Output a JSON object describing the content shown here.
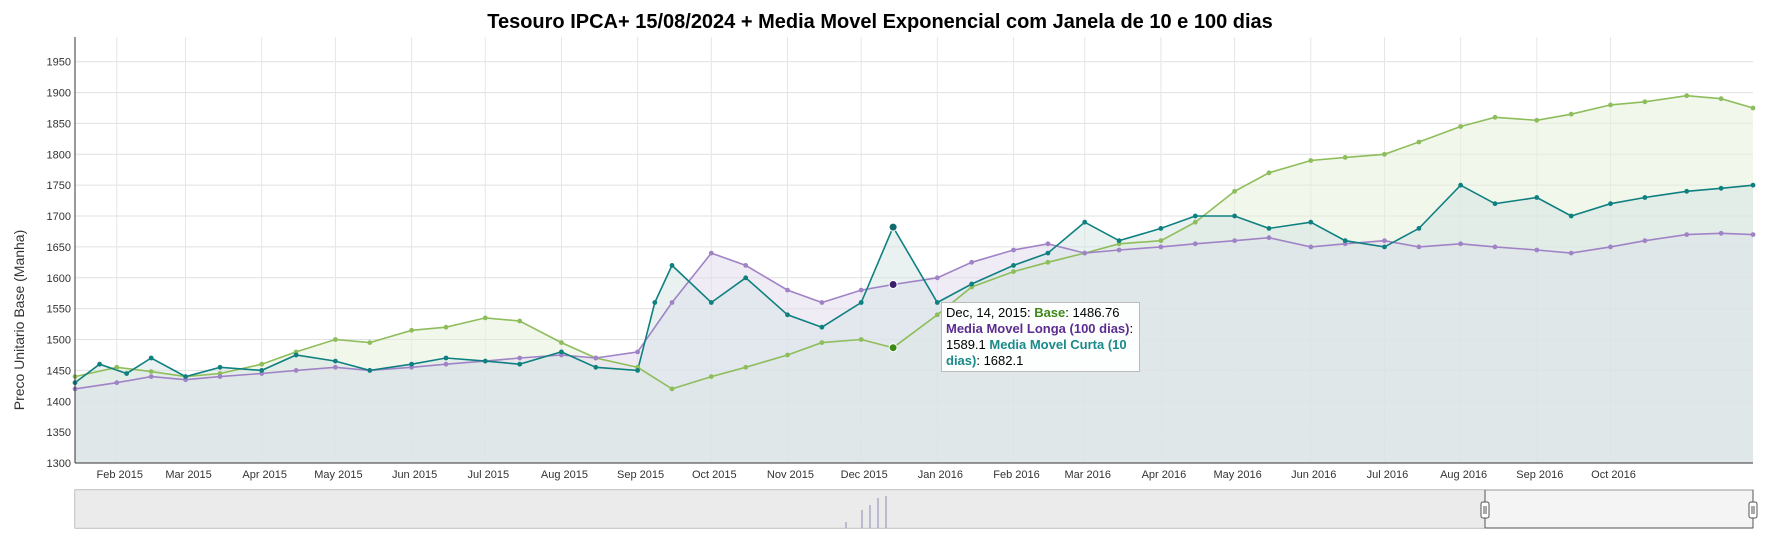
{
  "chart_data": {
    "type": "line",
    "title": "Tesouro IPCA+ 15/08/2024 + Media Movel Exponencial com Janela de 10 e 100 dias",
    "xlabel": "",
    "ylabel": "Preco Unitario Base (Manha)",
    "ylim": [
      1300,
      1990
    ],
    "xlim": [
      "2015-01-15",
      "2016-11-28"
    ],
    "grid": true,
    "y_ticks": [
      1300,
      1350,
      1400,
      1450,
      1500,
      1550,
      1600,
      1650,
      1700,
      1750,
      1800,
      1850,
      1900,
      1950
    ],
    "x_ticks": [
      {
        "date": "2015-02-01",
        "label": "Feb 2015"
      },
      {
        "date": "2015-03-01",
        "label": "Mar 2015"
      },
      {
        "date": "2015-04-01",
        "label": "Apr 2015"
      },
      {
        "date": "2015-05-01",
        "label": "May 2015"
      },
      {
        "date": "2015-06-01",
        "label": "Jun 2015"
      },
      {
        "date": "2015-07-01",
        "label": "Jul 2015"
      },
      {
        "date": "2015-08-01",
        "label": "Aug 2015"
      },
      {
        "date": "2015-09-01",
        "label": "Sep 2015"
      },
      {
        "date": "2015-10-01",
        "label": "Oct 2015"
      },
      {
        "date": "2015-11-01",
        "label": "Nov 2015"
      },
      {
        "date": "2015-12-01",
        "label": "Dec 2015"
      },
      {
        "date": "2016-01-01",
        "label": "Jan 2016"
      },
      {
        "date": "2016-02-01",
        "label": "Feb 2016"
      },
      {
        "date": "2016-03-01",
        "label": "Mar 2016"
      },
      {
        "date": "2016-04-01",
        "label": "Apr 2016"
      },
      {
        "date": "2016-05-01",
        "label": "May 2016"
      },
      {
        "date": "2016-06-01",
        "label": "Jun 2016"
      },
      {
        "date": "2016-07-01",
        "label": "Jul 2016"
      },
      {
        "date": "2016-08-01",
        "label": "Aug 2016"
      },
      {
        "date": "2016-09-01",
        "label": "Sep 2016"
      },
      {
        "date": "2016-10-01",
        "label": "Oct 2016"
      }
    ],
    "series": [
      {
        "name": "Base",
        "color": "#8ebd5b",
        "fill": "#e7f1dc",
        "points": [
          [
            "2015-01-15",
            1440
          ],
          [
            "2015-02-01",
            1455
          ],
          [
            "2015-02-15",
            1448
          ],
          [
            "2015-03-01",
            1440
          ],
          [
            "2015-03-15",
            1445
          ],
          [
            "2015-04-01",
            1460
          ],
          [
            "2015-04-15",
            1480
          ],
          [
            "2015-05-01",
            1500
          ],
          [
            "2015-05-15",
            1495
          ],
          [
            "2015-06-01",
            1515
          ],
          [
            "2015-06-15",
            1520
          ],
          [
            "2015-07-01",
            1535
          ],
          [
            "2015-07-15",
            1530
          ],
          [
            "2015-08-01",
            1495
          ],
          [
            "2015-08-15",
            1470
          ],
          [
            "2015-09-01",
            1455
          ],
          [
            "2015-09-15",
            1420
          ],
          [
            "2015-10-01",
            1440
          ],
          [
            "2015-10-15",
            1455
          ],
          [
            "2015-11-01",
            1475
          ],
          [
            "2015-11-15",
            1495
          ],
          [
            "2015-12-01",
            1500
          ],
          [
            "2015-12-14",
            1486.76
          ],
          [
            "2016-01-01",
            1540
          ],
          [
            "2016-01-15",
            1585
          ],
          [
            "2016-02-01",
            1610
          ],
          [
            "2016-02-15",
            1625
          ],
          [
            "2016-03-01",
            1640
          ],
          [
            "2016-03-15",
            1655
          ],
          [
            "2016-04-01",
            1660
          ],
          [
            "2016-04-15",
            1690
          ],
          [
            "2016-05-01",
            1740
          ],
          [
            "2016-05-15",
            1770
          ],
          [
            "2016-06-01",
            1790
          ],
          [
            "2016-06-15",
            1795
          ],
          [
            "2016-07-01",
            1800
          ],
          [
            "2016-07-15",
            1820
          ],
          [
            "2016-08-01",
            1845
          ],
          [
            "2016-08-15",
            1860
          ],
          [
            "2016-09-01",
            1855
          ],
          [
            "2016-09-15",
            1865
          ],
          [
            "2016-10-01",
            1880
          ],
          [
            "2016-10-15",
            1885
          ],
          [
            "2016-11-01",
            1895
          ],
          [
            "2016-11-15",
            1890
          ],
          [
            "2016-11-28",
            1875
          ]
        ]
      },
      {
        "name": "Media Movel Longa (100 dias)",
        "color": "#a083c6",
        "fill": "#e3dcee",
        "points": [
          [
            "2015-01-15",
            1420
          ],
          [
            "2015-02-01",
            1430
          ],
          [
            "2015-02-15",
            1440
          ],
          [
            "2015-03-01",
            1435
          ],
          [
            "2015-03-15",
            1440
          ],
          [
            "2015-04-01",
            1445
          ],
          [
            "2015-04-15",
            1450
          ],
          [
            "2015-05-01",
            1455
          ],
          [
            "2015-05-15",
            1450
          ],
          [
            "2015-06-01",
            1455
          ],
          [
            "2015-06-15",
            1460
          ],
          [
            "2015-07-01",
            1465
          ],
          [
            "2015-07-15",
            1470
          ],
          [
            "2015-08-01",
            1475
          ],
          [
            "2015-08-15",
            1470
          ],
          [
            "2015-09-01",
            1480
          ],
          [
            "2015-09-15",
            1560
          ],
          [
            "2015-10-01",
            1640
          ],
          [
            "2015-10-15",
            1620
          ],
          [
            "2015-11-01",
            1580
          ],
          [
            "2015-11-15",
            1560
          ],
          [
            "2015-12-01",
            1580
          ],
          [
            "2015-12-14",
            1589.1
          ],
          [
            "2016-01-01",
            1600
          ],
          [
            "2016-01-15",
            1625
          ],
          [
            "2016-02-01",
            1645
          ],
          [
            "2016-02-15",
            1655
          ],
          [
            "2016-03-01",
            1640
          ],
          [
            "2016-03-15",
            1645
          ],
          [
            "2016-04-01",
            1650
          ],
          [
            "2016-04-15",
            1655
          ],
          [
            "2016-05-01",
            1660
          ],
          [
            "2016-05-15",
            1665
          ],
          [
            "2016-06-01",
            1650
          ],
          [
            "2016-06-15",
            1655
          ],
          [
            "2016-07-01",
            1660
          ],
          [
            "2016-07-15",
            1650
          ],
          [
            "2016-08-01",
            1655
          ],
          [
            "2016-08-15",
            1650
          ],
          [
            "2016-09-01",
            1645
          ],
          [
            "2016-09-15",
            1640
          ],
          [
            "2016-10-01",
            1650
          ],
          [
            "2016-10-15",
            1660
          ],
          [
            "2016-11-01",
            1670
          ],
          [
            "2016-11-15",
            1672
          ],
          [
            "2016-11-28",
            1670
          ]
        ]
      },
      {
        "name": "Media Movel Curta (10 dias)",
        "color": "#0f8080",
        "fill": "#d7e6e6",
        "points": [
          [
            "2015-01-15",
            1430
          ],
          [
            "2015-01-25",
            1460
          ],
          [
            "2015-02-05",
            1445
          ],
          [
            "2015-02-15",
            1470
          ],
          [
            "2015-03-01",
            1440
          ],
          [
            "2015-03-15",
            1455
          ],
          [
            "2015-04-01",
            1450
          ],
          [
            "2015-04-15",
            1475
          ],
          [
            "2015-05-01",
            1465
          ],
          [
            "2015-05-15",
            1450
          ],
          [
            "2015-06-01",
            1460
          ],
          [
            "2015-06-15",
            1470
          ],
          [
            "2015-07-01",
            1465
          ],
          [
            "2015-07-15",
            1460
          ],
          [
            "2015-08-01",
            1480
          ],
          [
            "2015-08-15",
            1455
          ],
          [
            "2015-09-01",
            1450
          ],
          [
            "2015-09-08",
            1560
          ],
          [
            "2015-09-15",
            1620
          ],
          [
            "2015-10-01",
            1560
          ],
          [
            "2015-10-15",
            1600
          ],
          [
            "2015-11-01",
            1540
          ],
          [
            "2015-11-15",
            1520
          ],
          [
            "2015-12-01",
            1560
          ],
          [
            "2015-12-14",
            1682.1
          ],
          [
            "2016-01-01",
            1560
          ],
          [
            "2016-01-15",
            1590
          ],
          [
            "2016-02-01",
            1620
          ],
          [
            "2016-02-15",
            1640
          ],
          [
            "2016-03-01",
            1690
          ],
          [
            "2016-03-15",
            1660
          ],
          [
            "2016-04-01",
            1680
          ],
          [
            "2016-04-15",
            1700
          ],
          [
            "2016-05-01",
            1700
          ],
          [
            "2016-05-15",
            1680
          ],
          [
            "2016-06-01",
            1690
          ],
          [
            "2016-06-15",
            1660
          ],
          [
            "2016-07-01",
            1650
          ],
          [
            "2016-07-15",
            1680
          ],
          [
            "2016-08-01",
            1750
          ],
          [
            "2016-08-15",
            1720
          ],
          [
            "2016-09-01",
            1730
          ],
          [
            "2016-09-15",
            1700
          ],
          [
            "2016-10-01",
            1720
          ],
          [
            "2016-10-15",
            1730
          ],
          [
            "2016-11-01",
            1740
          ],
          [
            "2016-11-15",
            1745
          ],
          [
            "2016-11-28",
            1750
          ]
        ]
      }
    ],
    "tooltip": {
      "date_label": "Dec, 14, 2015:",
      "base_label": "Base",
      "base_value": "1486.76",
      "longa_label": "Media Movel Longa (100 dias)",
      "longa_value": "1589.1",
      "curta_label": "Media Movel Curta (10 dias)",
      "curta_value": "1682.1"
    }
  }
}
